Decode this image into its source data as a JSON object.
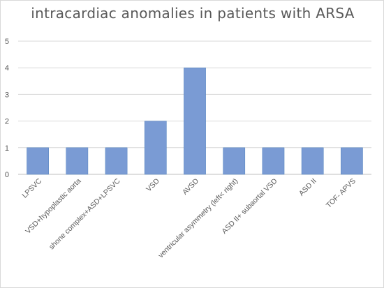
{
  "chart_data": {
    "type": "bar",
    "title": "intracardiac anomalies in patients with ARSA",
    "categories": [
      "LPSVC",
      "VSD+hypoplastic aorta",
      "shone complex+ASD+LPSVC",
      "VSD",
      "AVSD",
      "ventricular asymmetry (left< right)",
      "ASD II+ subaortal VSD",
      "ASD II",
      "TOF- APVS"
    ],
    "series": [
      {
        "values": [
          1,
          1,
          1,
          2,
          4,
          1,
          1,
          1,
          1
        ]
      }
    ],
    "ylim": [
      0,
      5
    ],
    "yticks": [
      0,
      1,
      2,
      3,
      4,
      5
    ],
    "grid": true,
    "legend": "none",
    "colors": {
      "bar": "#4f81bd",
      "bar_fill": "#7a9bd4",
      "grid": "#d9d9d9",
      "axis": "#bfbfbf",
      "tick_label": "#595959",
      "title": "#595959"
    }
  }
}
